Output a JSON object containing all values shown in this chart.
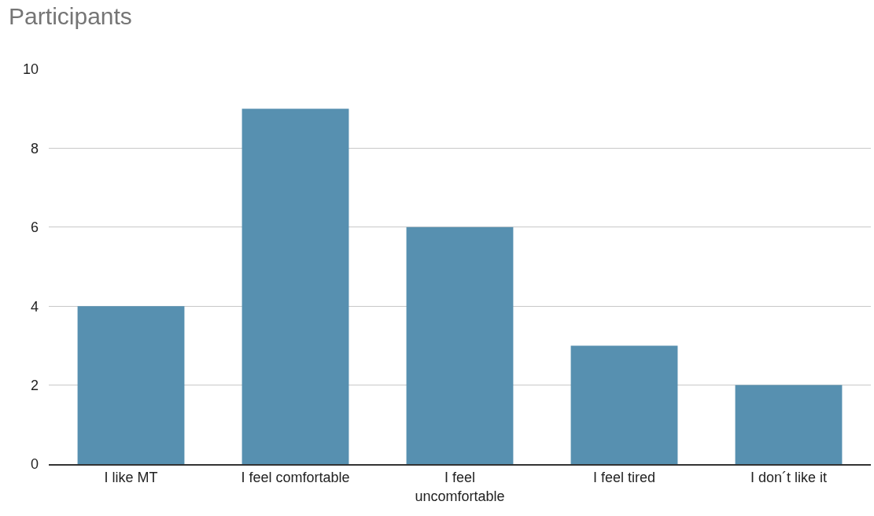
{
  "chart_data": {
    "type": "bar",
    "title": "Participants",
    "categories": [
      "I like MT",
      "I feel comfortable",
      "I feel uncomfortable",
      "I feel tired",
      "I don´t like it"
    ],
    "values": [
      4,
      9,
      6,
      3,
      2
    ],
    "color": "#5790b0",
    "ylim": [
      0,
      10
    ],
    "yticks": [
      0,
      2,
      4,
      6,
      8,
      10
    ],
    "grid": "y",
    "legend": false
  }
}
